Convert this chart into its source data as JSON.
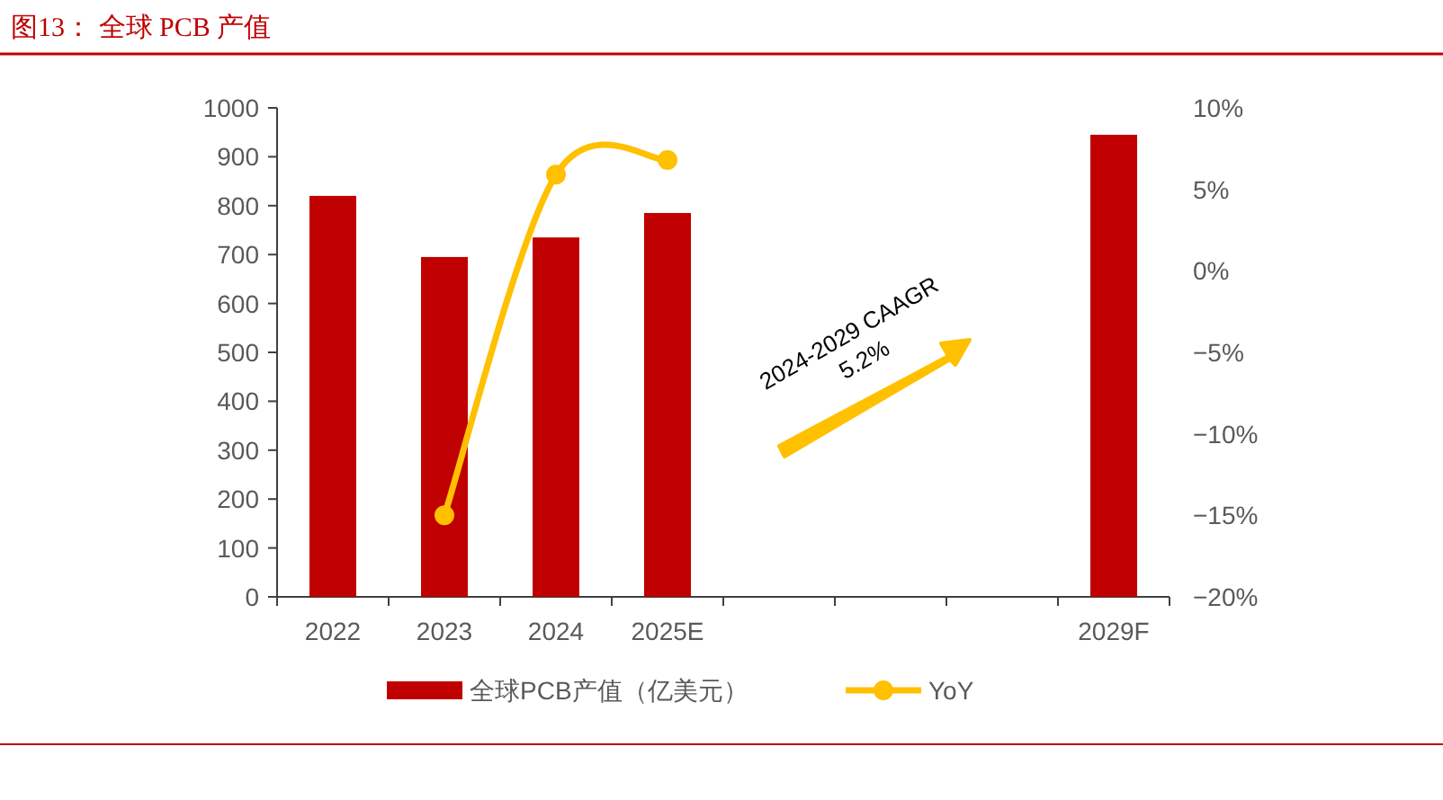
{
  "chart_data": {
    "type": "bar",
    "title": "图13：  全球 PCB 产值",
    "categories": [
      "2022",
      "2023",
      "2024",
      "2025E",
      null,
      null,
      null,
      "2029F"
    ],
    "series": [
      {
        "name": "全球PCB产值（亿美元）",
        "color": "#c00000",
        "values": [
          820,
          695,
          735,
          785,
          null,
          null,
          null,
          945
        ]
      },
      {
        "name": "YoY",
        "type": "line",
        "axis": "y2",
        "color": "#ffc000",
        "marker": "circle",
        "values": [
          null,
          -15,
          5.9,
          6.8,
          null,
          null,
          null,
          null
        ]
      }
    ],
    "ylim": [
      0,
      1000
    ],
    "yticks": [
      0,
      100,
      200,
      300,
      400,
      500,
      600,
      700,
      800,
      900,
      1000
    ],
    "y2lim": [
      -20,
      10
    ],
    "y2ticks": [
      {
        "value": -20,
        "label": "−20%"
      },
      {
        "value": -15,
        "label": "−15%"
      },
      {
        "value": -10,
        "label": "−10%"
      },
      {
        "value": -5,
        "label": "−5%"
      },
      {
        "value": 0,
        "label": "0%"
      },
      {
        "value": 5,
        "label": "5%"
      },
      {
        "value": 10,
        "label": "10%"
      }
    ],
    "legend": "bottom",
    "annotations": [
      "2024-2029 CAAGR 5.2%"
    ]
  }
}
